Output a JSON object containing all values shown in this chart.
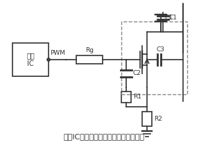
{
  "title": "",
  "caption": "电源IC直接驱动是最简单的驱动方式，",
  "box_label": "电源\nIC",
  "pwm_label": "PWM",
  "rg_label": "Rg",
  "r1_label": "R1",
  "r2_label": "R2",
  "c1_label": "C1",
  "c2_label": "C2",
  "c3_label": "C3",
  "line_color": "#333333",
  "bg_color": "#ffffff",
  "dashed_color": "#888888"
}
